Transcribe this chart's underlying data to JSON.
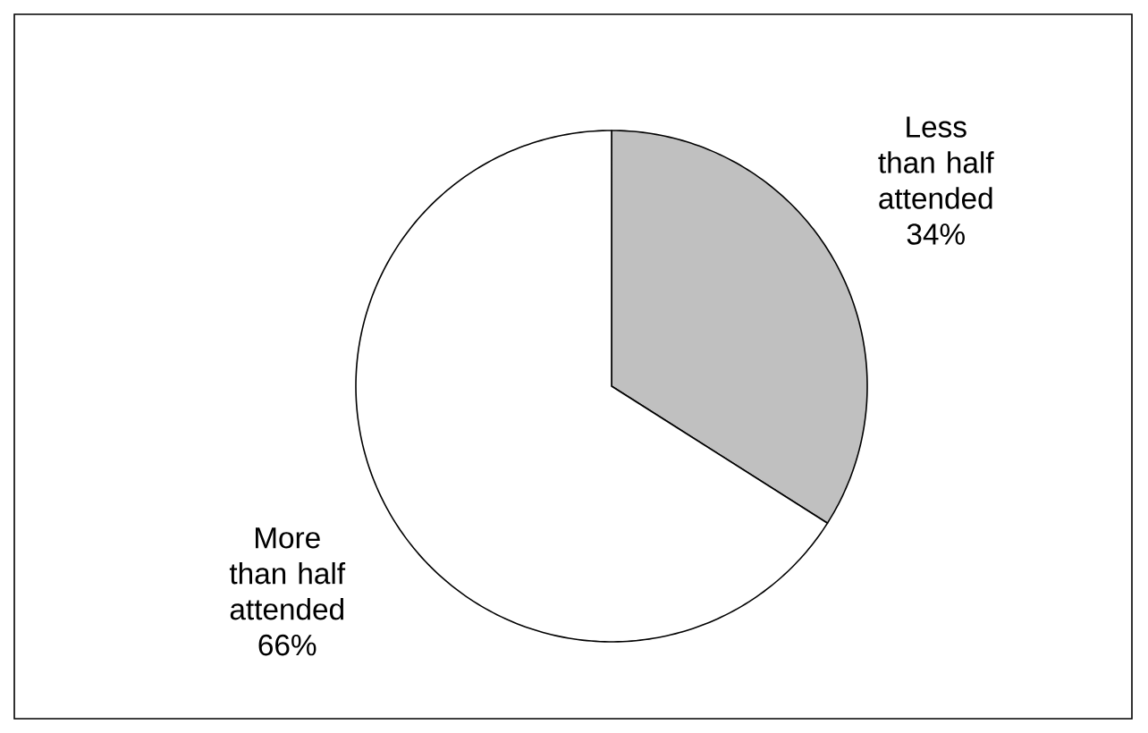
{
  "chart_data": {
    "type": "pie",
    "categories": [
      "Less than half attended",
      "More than half attended"
    ],
    "values": [
      34,
      66
    ],
    "value_labels": [
      "34%",
      "66%"
    ],
    "colors": [
      "#c0c0c0",
      "#ffffff"
    ]
  }
}
